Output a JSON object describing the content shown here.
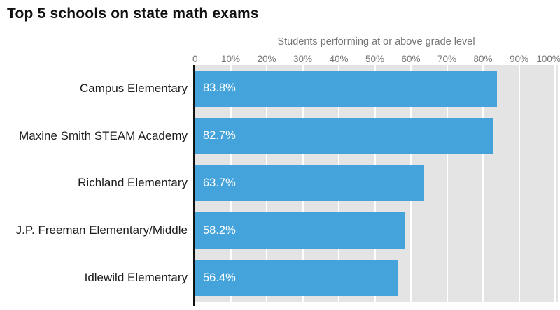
{
  "page": {
    "title": "Top 5 schools on state math exams"
  },
  "chart_data": {
    "type": "bar",
    "orientation": "horizontal",
    "title": "Top 5 schools on state math exams",
    "axis_title": "Students performing at or above grade level",
    "categories": [
      "Campus Elementary",
      "Maxine Smith STEAM Academy",
      "Richland Elementary",
      "J.P. Freeman Elementary/Middle",
      "Idlewild Elementary"
    ],
    "values": [
      83.8,
      82.7,
      63.7,
      58.2,
      56.4
    ],
    "value_labels": [
      "83.8%",
      "82.7%",
      "63.7%",
      "58.2%",
      "56.4%"
    ],
    "xlabel": "Students performing at or above grade level",
    "ylabel": "",
    "xlim": [
      0,
      100
    ],
    "x_ticks": [
      {
        "label": "0",
        "value": 0
      },
      {
        "label": "10%",
        "value": 10
      },
      {
        "label": "20%",
        "value": 20
      },
      {
        "label": "30%",
        "value": 30
      },
      {
        "label": "40%",
        "value": 40
      },
      {
        "label": "50%",
        "value": 50
      },
      {
        "label": "60%",
        "value": 60
      },
      {
        "label": "70%",
        "value": 70
      },
      {
        "label": "80%",
        "value": 80
      },
      {
        "label": "90%",
        "value": 90
      },
      {
        "label": "100%",
        "value": 100
      }
    ],
    "grid": true,
    "legend_position": "none",
    "colors": {
      "bar": "#45a3db",
      "plot_background": "#e4e4e4",
      "gridline": "#ffffff",
      "axis_line": "#111111",
      "tick_text": "#757575",
      "category_text": "#1c1c1c",
      "value_text": "#ffffff",
      "title_text": "#111111"
    }
  }
}
